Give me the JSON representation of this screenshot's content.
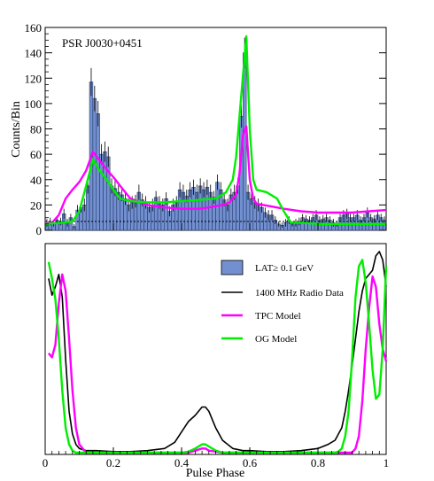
{
  "chart_data": [
    {
      "type": "bar",
      "annotation": "PSR J0030+0451",
      "ylabel": "Counts/Bin",
      "xlim": [
        0,
        1
      ],
      "ylim": [
        0,
        160
      ],
      "yticks": [
        0,
        20,
        40,
        60,
        80,
        100,
        120,
        140,
        160
      ],
      "bin_width": 0.01,
      "bins": {
        "x": [
          0.01,
          0.02,
          0.03,
          0.04,
          0.05,
          0.06,
          0.07,
          0.08,
          0.09,
          0.1,
          0.11,
          0.12,
          0.13,
          0.14,
          0.15,
          0.16,
          0.17,
          0.18,
          0.19,
          0.2,
          0.21,
          0.22,
          0.23,
          0.24,
          0.25,
          0.26,
          0.27,
          0.28,
          0.29,
          0.3,
          0.31,
          0.32,
          0.33,
          0.34,
          0.35,
          0.36,
          0.37,
          0.38,
          0.39,
          0.4,
          0.41,
          0.42,
          0.43,
          0.44,
          0.45,
          0.46,
          0.47,
          0.48,
          0.49,
          0.5,
          0.51,
          0.52,
          0.53,
          0.54,
          0.55,
          0.56,
          0.57,
          0.58,
          0.59,
          0.6,
          0.61,
          0.62,
          0.63,
          0.64,
          0.65,
          0.66,
          0.67,
          0.68,
          0.69,
          0.7,
          0.71,
          0.72,
          0.73,
          0.74,
          0.75,
          0.76,
          0.77,
          0.78,
          0.79,
          0.8,
          0.81,
          0.82,
          0.83,
          0.84,
          0.85,
          0.86,
          0.87,
          0.88,
          0.89,
          0.9,
          0.91,
          0.92,
          0.93,
          0.94,
          0.95,
          0.96,
          0.97,
          0.98,
          0.99,
          1.0
        ],
        "values": [
          6,
          7,
          5,
          8,
          7,
          13,
          6,
          10,
          3,
          16,
          18,
          20,
          35,
          117,
          104,
          92,
          60,
          62,
          58,
          35,
          33,
          30,
          28,
          25,
          20,
          22,
          23,
          30,
          24,
          22,
          18,
          20,
          26,
          22,
          20,
          25,
          15,
          20,
          22,
          32,
          30,
          27,
          32,
          34,
          30,
          35,
          32,
          34,
          30,
          26,
          38,
          32,
          24,
          20,
          28,
          30,
          35,
          90,
          140,
          30,
          25,
          22,
          20,
          18,
          14,
          12,
          12,
          8,
          5,
          4,
          6,
          8,
          5,
          6,
          7,
          10,
          9,
          8,
          10,
          12,
          8,
          9,
          10,
          8,
          6,
          5,
          10,
          12,
          13,
          10,
          10,
          12,
          8,
          10,
          14,
          10,
          9,
          12,
          10,
          8
        ],
        "errors": [
          3,
          3,
          2,
          3,
          3,
          4,
          3,
          3,
          2,
          4,
          4,
          5,
          6,
          11,
          10,
          10,
          8,
          8,
          8,
          6,
          6,
          6,
          5,
          5,
          5,
          5,
          5,
          6,
          5,
          5,
          4,
          5,
          5,
          5,
          5,
          5,
          4,
          5,
          5,
          6,
          6,
          5,
          6,
          6,
          6,
          6,
          6,
          6,
          6,
          5,
          6,
          6,
          5,
          5,
          5,
          6,
          6,
          9,
          12,
          6,
          5,
          5,
          5,
          4,
          4,
          4,
          4,
          3,
          2,
          2,
          3,
          3,
          2,
          3,
          3,
          3,
          3,
          3,
          3,
          4,
          3,
          3,
          3,
          3,
          3,
          2,
          3,
          4,
          4,
          3,
          3,
          4,
          3,
          3,
          4,
          3,
          3,
          4,
          3,
          3
        ]
      },
      "background_level": 7,
      "series": [
        {
          "name": "TPC Model",
          "color": "#ff00ff",
          "x": [
            0.0,
            0.02,
            0.04,
            0.06,
            0.08,
            0.1,
            0.12,
            0.14,
            0.16,
            0.18,
            0.2,
            0.22,
            0.25,
            0.3,
            0.35,
            0.4,
            0.45,
            0.48,
            0.5,
            0.52,
            0.54,
            0.56,
            0.57,
            0.58,
            0.59,
            0.6,
            0.61,
            0.62,
            0.64,
            0.66,
            0.7,
            0.75,
            0.8,
            0.85,
            0.9,
            0.95,
            1.0
          ],
          "y": [
            6,
            6,
            12,
            25,
            32,
            38,
            47,
            62,
            55,
            48,
            42,
            35,
            25,
            20,
            18,
            17,
            17,
            18,
            19,
            20,
            22,
            28,
            45,
            75,
            82,
            40,
            25,
            21,
            20,
            19,
            17,
            15,
            14,
            14,
            14,
            15,
            16
          ]
        },
        {
          "name": "OG Model",
          "color": "#00ee00",
          "x": [
            0.0,
            0.05,
            0.08,
            0.1,
            0.12,
            0.14,
            0.16,
            0.18,
            0.2,
            0.22,
            0.25,
            0.3,
            0.35,
            0.4,
            0.45,
            0.5,
            0.53,
            0.55,
            0.56,
            0.57,
            0.58,
            0.59,
            0.6,
            0.61,
            0.62,
            0.65,
            0.68,
            0.7,
            0.72,
            0.75,
            0.8,
            0.85,
            0.9,
            0.95,
            1.0
          ],
          "y": [
            5,
            6,
            7,
            15,
            35,
            56,
            47,
            40,
            32,
            25,
            23,
            22,
            22,
            23,
            24,
            25,
            30,
            40,
            58,
            90,
            122,
            153,
            80,
            40,
            32,
            30,
            25,
            15,
            6,
            6,
            5,
            5,
            5,
            5,
            5
          ]
        }
      ]
    },
    {
      "type": "line",
      "xlabel": "Pulse Phase",
      "xlim": [
        0,
        1
      ],
      "xticks": [
        0,
        0.2,
        0.4,
        0.6,
        0.8,
        1
      ],
      "xtick_labels": [
        "0",
        "0.2",
        "0.4",
        "0.6",
        "0.8",
        "1"
      ],
      "ylim": [
        0,
        1
      ],
      "legend_position": "top-right",
      "legend": [
        {
          "label": "LAT≥ 0.1 GeV",
          "kind": "box",
          "color": "#7290d0"
        },
        {
          "label": "1400 MHz Radio Data",
          "kind": "line",
          "color": "#000000"
        },
        {
          "label": "TPC Model",
          "kind": "line",
          "color": "#ff00ff"
        },
        {
          "label": "OG Model",
          "kind": "line",
          "color": "#00ee00"
        }
      ],
      "series": [
        {
          "name": "1400 MHz Radio Data",
          "color": "#000000",
          "x": [
            0.01,
            0.02,
            0.03,
            0.04,
            0.05,
            0.06,
            0.07,
            0.08,
            0.09,
            0.1,
            0.12,
            0.15,
            0.2,
            0.25,
            0.3,
            0.35,
            0.38,
            0.4,
            0.42,
            0.44,
            0.46,
            0.47,
            0.48,
            0.5,
            0.52,
            0.55,
            0.58,
            0.6,
            0.65,
            0.7,
            0.75,
            0.8,
            0.83,
            0.85,
            0.87,
            0.88,
            0.89,
            0.9,
            0.91,
            0.92,
            0.93,
            0.94,
            0.95,
            0.96,
            0.97,
            0.98,
            0.99,
            1.0
          ],
          "y": [
            0.84,
            0.76,
            0.8,
            0.86,
            0.75,
            0.45,
            0.2,
            0.09,
            0.04,
            0.02,
            0.01,
            0.01,
            0.005,
            0.005,
            0.01,
            0.02,
            0.05,
            0.1,
            0.15,
            0.18,
            0.22,
            0.22,
            0.2,
            0.12,
            0.06,
            0.02,
            0.01,
            0.01,
            0.005,
            0.005,
            0.01,
            0.02,
            0.04,
            0.06,
            0.12,
            0.2,
            0.3,
            0.42,
            0.55,
            0.68,
            0.78,
            0.84,
            0.86,
            0.88,
            0.95,
            0.97,
            0.93,
            0.8
          ]
        },
        {
          "name": "TPC Model",
          "color": "#ff00ff",
          "x": [
            0.01,
            0.02,
            0.03,
            0.04,
            0.05,
            0.06,
            0.07,
            0.08,
            0.09,
            0.1,
            0.12,
            0.15,
            0.2,
            0.3,
            0.4,
            0.42,
            0.44,
            0.46,
            0.47,
            0.48,
            0.5,
            0.52,
            0.54,
            0.6,
            0.7,
            0.8,
            0.86,
            0.88,
            0.89,
            0.9,
            0.91,
            0.92,
            0.93,
            0.94,
            0.95,
            0.96,
            0.97,
            0.98,
            0.99,
            1.0
          ],
          "y": [
            0.48,
            0.46,
            0.52,
            0.72,
            0.86,
            0.78,
            0.55,
            0.3,
            0.12,
            0.04,
            0,
            0,
            0,
            0,
            0,
            0,
            0.01,
            0.02,
            0.02,
            0.01,
            0.005,
            0,
            0,
            0,
            0,
            0,
            0,
            0,
            0,
            0,
            0.02,
            0.08,
            0.25,
            0.5,
            0.7,
            0.85,
            0.8,
            0.62,
            0.5,
            0.44
          ]
        },
        {
          "name": "OG Model",
          "color": "#00ee00",
          "x": [
            0.01,
            0.02,
            0.03,
            0.04,
            0.05,
            0.06,
            0.07,
            0.08,
            0.09,
            0.1,
            0.12,
            0.15,
            0.2,
            0.3,
            0.4,
            0.42,
            0.44,
            0.46,
            0.47,
            0.48,
            0.5,
            0.52,
            0.54,
            0.6,
            0.7,
            0.8,
            0.85,
            0.86,
            0.87,
            0.88,
            0.89,
            0.9,
            0.91,
            0.92,
            0.93,
            0.94,
            0.95,
            0.96,
            0.97,
            0.98,
            0.99,
            1.0
          ],
          "y": [
            0.92,
            0.84,
            0.74,
            0.55,
            0.3,
            0.12,
            0.04,
            0.01,
            0,
            0,
            0,
            0,
            0,
            0,
            0,
            0.005,
            0.02,
            0.04,
            0.04,
            0.03,
            0.01,
            0,
            0,
            0,
            0,
            0,
            0,
            0.005,
            0.02,
            0.08,
            0.2,
            0.45,
            0.75,
            0.9,
            0.93,
            0.82,
            0.62,
            0.4,
            0.26,
            0.28,
            0.5,
            0.9
          ]
        }
      ]
    }
  ]
}
